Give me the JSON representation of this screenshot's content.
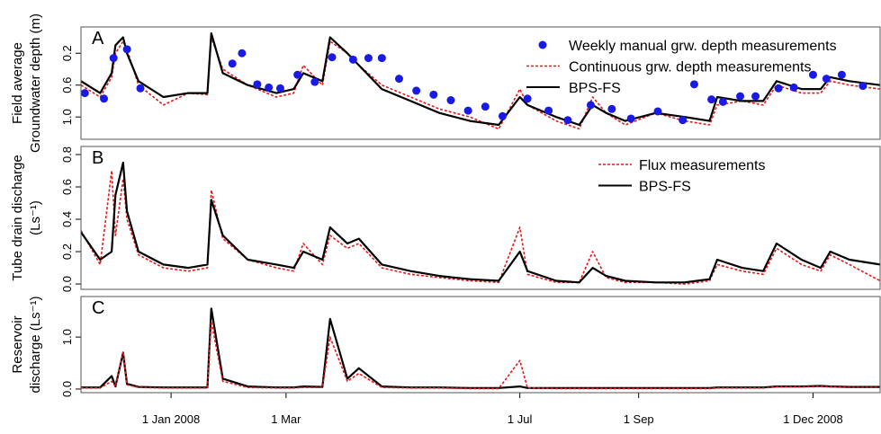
{
  "chart_data": [
    {
      "type": "line",
      "panel_label": "A",
      "ylabel": [
        "Field average",
        "Groundwater depth (m)"
      ],
      "xlim": [
        "2007-11-15",
        "2009-01-05"
      ],
      "ylim": [
        1.28,
        -0.13
      ],
      "yticks": [
        0.2,
        0.6,
        {
          "value": 1,
          "label": "1.0"
        }
      ],
      "legend": "upper right",
      "x": [
        "2007-11-15",
        "2007-11-25",
        "2007-12-01",
        "2007-12-03",
        "2007-12-07",
        "2007-12-09",
        "2007-12-15",
        "2007-12-28",
        "2008-01-10",
        "2008-01-20",
        "2008-01-22",
        "2008-01-28",
        "2008-02-10",
        "2008-02-25",
        "2008-03-05",
        "2008-03-10",
        "2008-03-20",
        "2008-03-24",
        "2008-04-02",
        "2008-04-08",
        "2008-04-20",
        "2008-05-05",
        "2008-05-20",
        "2008-06-05",
        "2008-06-20",
        "2008-07-01",
        "2008-07-05",
        "2008-07-20",
        "2008-08-01",
        "2008-08-08",
        "2008-08-15",
        "2008-08-25",
        "2008-09-10",
        "2008-09-25",
        "2008-10-08",
        "2008-10-12",
        "2008-10-25",
        "2008-11-05",
        "2008-11-12",
        "2008-11-25",
        "2008-12-05",
        "2008-12-10",
        "2008-12-20",
        "2009-01-05"
      ],
      "series": [
        {
          "name": "Weekly manual grw. depth measurements",
          "type": "scatter",
          "color": "#1a1ae6",
          "x": [
            "2007-11-17",
            "2007-11-27",
            "2007-12-02",
            "2007-12-09",
            "2007-12-16",
            "2008-02-02",
            "2008-02-07",
            "2008-02-15",
            "2008-02-21",
            "2008-02-27",
            "2008-03-07",
            "2008-03-16",
            "2008-03-25",
            "2008-04-05",
            "2008-04-13",
            "2008-04-20",
            "2008-04-29",
            "2008-05-08",
            "2008-05-17",
            "2008-05-26",
            "2008-06-04",
            "2008-06-13",
            "2008-06-22",
            "2008-07-05",
            "2008-07-16",
            "2008-07-26",
            "2008-08-07",
            "2008-08-18",
            "2008-08-28",
            "2008-09-11",
            "2008-09-24",
            "2008-09-30",
            "2008-10-09",
            "2008-10-15",
            "2008-10-24",
            "2008-11-01",
            "2008-11-13",
            "2008-11-21",
            "2008-12-01",
            "2008-12-08",
            "2008-12-16",
            "2008-12-27"
          ],
          "values": [
            0.7,
            0.77,
            0.26,
            0.15,
            0.64,
            0.33,
            0.2,
            0.59,
            0.63,
            0.64,
            0.47,
            0.56,
            0.25,
            0.28,
            0.26,
            0.26,
            0.52,
            0.67,
            0.72,
            0.79,
            0.92,
            0.87,
            0.99,
            0.77,
            0.92,
            1.04,
            0.85,
            0.9,
            1.02,
            0.93,
            1.04,
            0.59,
            0.78,
            0.81,
            0.74,
            0.74,
            0.64,
            0.63,
            0.47,
            0.52,
            0.47,
            0.61
          ]
        },
        {
          "name": "Continuous grw. depth measurements",
          "type": "line",
          "color": "#e31a1c",
          "dash": true,
          "values": [
            0.6,
            0.75,
            0.5,
            0.2,
            0.05,
            0.15,
            0.6,
            0.85,
            0.7,
            0.72,
            0.0,
            0.4,
            0.6,
            0.75,
            0.7,
            0.35,
            0.6,
            0.05,
            0.2,
            0.35,
            0.6,
            0.75,
            0.9,
            1.0,
            1.15,
            0.65,
            0.85,
            1.05,
            1.15,
            0.75,
            0.95,
            1.1,
            0.95,
            1.05,
            1.1,
            0.85,
            0.8,
            0.85,
            0.6,
            0.7,
            0.7,
            0.55,
            0.6,
            0.65
          ]
        },
        {
          "name": "BPS-FS",
          "type": "line",
          "color": "#000000",
          "dash": false,
          "values": [
            0.55,
            0.7,
            0.45,
            0.1,
            0.0,
            0.2,
            0.55,
            0.75,
            0.7,
            0.7,
            -0.05,
            0.45,
            0.6,
            0.7,
            0.65,
            0.45,
            0.55,
            0.0,
            0.2,
            0.35,
            0.65,
            0.8,
            0.95,
            1.05,
            1.1,
            0.75,
            0.85,
            1.0,
            1.1,
            0.85,
            0.95,
            1.05,
            0.95,
            1.0,
            1.05,
            0.75,
            0.8,
            0.8,
            0.55,
            0.65,
            0.65,
            0.5,
            0.55,
            0.6
          ]
        }
      ]
    },
    {
      "type": "line",
      "panel_label": "B",
      "ylabel": [
        "Tube drain discharge",
        "(Ls⁻¹)"
      ],
      "xlim": [
        "2007-11-15",
        "2009-01-05"
      ],
      "ylim": [
        -0.033,
        0.85
      ],
      "yticks": [
        {
          "value": 0,
          "label": "0.0"
        },
        0.2,
        0.4,
        0.6,
        0.8
      ],
      "legend": "upper right",
      "x": [
        "2007-11-15",
        "2007-11-25",
        "2007-12-01",
        "2007-12-03",
        "2007-12-07",
        "2007-12-09",
        "2007-12-15",
        "2007-12-28",
        "2008-01-10",
        "2008-01-20",
        "2008-01-22",
        "2008-01-28",
        "2008-02-10",
        "2008-02-25",
        "2008-03-05",
        "2008-03-10",
        "2008-03-20",
        "2008-03-24",
        "2008-04-02",
        "2008-04-08",
        "2008-04-20",
        "2008-05-05",
        "2008-05-20",
        "2008-06-05",
        "2008-06-20",
        "2008-07-01",
        "2008-07-05",
        "2008-07-20",
        "2008-08-01",
        "2008-08-08",
        "2008-08-15",
        "2008-08-25",
        "2008-09-10",
        "2008-09-25",
        "2008-10-08",
        "2008-10-12",
        "2008-10-25",
        "2008-11-05",
        "2008-11-12",
        "2008-11-25",
        "2008-12-05",
        "2008-12-10",
        "2008-12-20",
        "2009-01-05"
      ],
      "series": [
        {
          "name": "Flux measurements",
          "type": "line",
          "color": "#e31a1c",
          "dash": true,
          "values": [
            0.33,
            0.12,
            0.7,
            0.3,
            0.65,
            0.4,
            0.18,
            0.1,
            0.08,
            0.1,
            0.58,
            0.28,
            0.15,
            0.1,
            0.08,
            0.25,
            0.12,
            0.3,
            0.22,
            0.25,
            0.1,
            0.06,
            0.04,
            0.02,
            0.01,
            0.35,
            0.06,
            0.01,
            0.01,
            0.2,
            0.04,
            0.01,
            0.01,
            0.0,
            0.02,
            0.12,
            0.08,
            0.06,
            0.22,
            0.12,
            0.08,
            0.18,
            0.12,
            0.02
          ]
        },
        {
          "name": "BPS-FS",
          "type": "line",
          "color": "#000000",
          "dash": false,
          "values": [
            0.32,
            0.15,
            0.2,
            0.55,
            0.75,
            0.45,
            0.2,
            0.12,
            0.1,
            0.12,
            0.52,
            0.3,
            0.15,
            0.12,
            0.1,
            0.2,
            0.15,
            0.35,
            0.25,
            0.28,
            0.12,
            0.08,
            0.05,
            0.03,
            0.02,
            0.2,
            0.08,
            0.02,
            0.01,
            0.1,
            0.05,
            0.02,
            0.01,
            0.01,
            0.03,
            0.15,
            0.1,
            0.08,
            0.25,
            0.15,
            0.1,
            0.2,
            0.15,
            0.12
          ]
        }
      ]
    },
    {
      "type": "line",
      "panel_label": "C",
      "ylabel": [
        "Reservoir",
        "discharge (Ls⁻¹)"
      ],
      "xlim": [
        "2007-11-15",
        "2009-01-05"
      ],
      "ylim": [
        -0.07,
        1.78
      ],
      "yticks": [
        {
          "value": 0,
          "label": "0.0"
        },
        {
          "value": 1,
          "label": "1.0"
        }
      ],
      "xticks": [
        {
          "value": "2008-01-01",
          "label": "1 Jan 2008"
        },
        {
          "value": "2008-03-01",
          "label": "1 Mar"
        },
        {
          "value": "2008-07-01",
          "label": "1 Jul"
        },
        {
          "value": "2008-09-01",
          "label": "1 Sep"
        },
        {
          "value": "2008-12-01",
          "label": "1 Dec 2008"
        }
      ],
      "x": [
        "2007-11-15",
        "2007-11-25",
        "2007-12-01",
        "2007-12-03",
        "2007-12-07",
        "2007-12-09",
        "2007-12-15",
        "2007-12-28",
        "2008-01-10",
        "2008-01-20",
        "2008-01-22",
        "2008-01-28",
        "2008-02-10",
        "2008-02-25",
        "2008-03-05",
        "2008-03-10",
        "2008-03-20",
        "2008-03-24",
        "2008-04-02",
        "2008-04-08",
        "2008-04-20",
        "2008-05-05",
        "2008-05-20",
        "2008-06-05",
        "2008-06-20",
        "2008-07-01",
        "2008-07-05",
        "2008-07-20",
        "2008-08-01",
        "2008-08-08",
        "2008-08-15",
        "2008-08-25",
        "2008-09-10",
        "2008-09-25",
        "2008-10-08",
        "2008-10-12",
        "2008-10-25",
        "2008-11-05",
        "2008-11-12",
        "2008-11-25",
        "2008-12-05",
        "2008-12-10",
        "2008-12-20",
        "2009-01-05"
      ],
      "series": [
        {
          "type": "line",
          "color": "#000000",
          "dash": false,
          "values": [
            0.03,
            0.03,
            0.25,
            0.05,
            0.7,
            0.1,
            0.04,
            0.03,
            0.03,
            0.03,
            1.55,
            0.2,
            0.05,
            0.03,
            0.03,
            0.05,
            0.04,
            1.35,
            0.2,
            0.4,
            0.05,
            0.03,
            0.03,
            0.02,
            0.02,
            0.05,
            0.02,
            0.02,
            0.02,
            0.02,
            0.02,
            0.02,
            0.02,
            0.02,
            0.02,
            0.03,
            0.03,
            0.03,
            0.05,
            0.05,
            0.06,
            0.05,
            0.04,
            0.04
          ]
        },
        {
          "type": "line",
          "color": "#e31a1c",
          "dash": true,
          "values": [
            0.02,
            0.02,
            0.15,
            0.05,
            0.72,
            0.08,
            0.03,
            0.02,
            0.02,
            0.02,
            1.3,
            0.15,
            0.03,
            0.02,
            0.02,
            0.03,
            0.03,
            1.0,
            0.15,
            0.3,
            0.03,
            0.02,
            0.02,
            0.01,
            0.01,
            0.55,
            0.02,
            0.01,
            0.01,
            0.01,
            0.01,
            0.01,
            0.01,
            0.01,
            0.01,
            0.02,
            0.02,
            0.02,
            0.04,
            0.04,
            0.05,
            0.04,
            0.03,
            0.03
          ]
        }
      ]
    }
  ]
}
